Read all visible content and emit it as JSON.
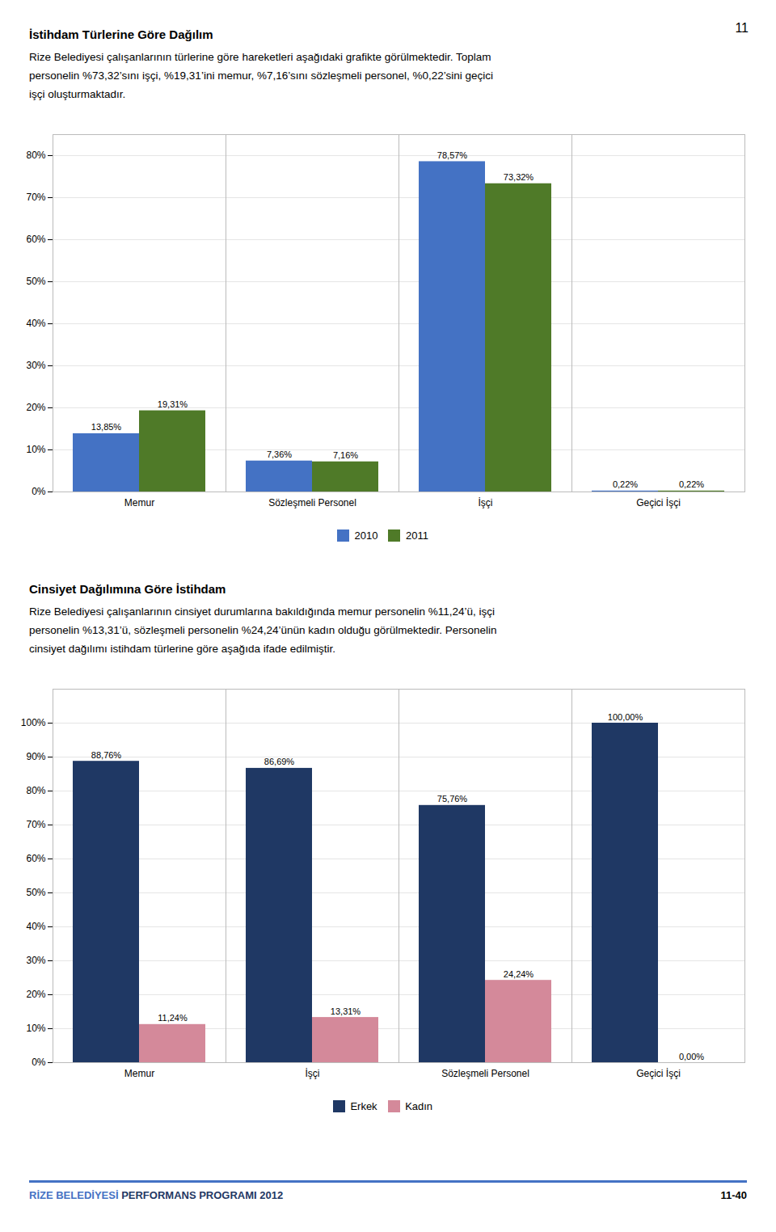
{
  "page_number": "11",
  "chart_data": [
    {
      "type": "bar",
      "title": "İstihdam Türlerine Göre Dağılım",
      "subtitle": [
        "Rize Belediyesi çalışanlarının türlerine göre hareketleri aşağıdaki grafikte görülmektedir. Toplam",
        "personelin %73,32’sını işçi, %19,31’ini memur, %7,16’sını sözleşmeli personel, %0,22’sini geçici",
        "işçi oluşturmaktadır."
      ],
      "categories": [
        "Memur",
        "Sözleşmeli Personel",
        "İşçi",
        "Geçici İşçi"
      ],
      "series": [
        {
          "name": "2010",
          "color": "#4472C4",
          "values": [
            13.85,
            7.36,
            78.57,
            0.22
          ],
          "value_labels": [
            "13,85%",
            "7,36%",
            "78,57%",
            "0,22%"
          ]
        },
        {
          "name": "2011",
          "color": "#4F7A28",
          "values": [
            19.31,
            7.16,
            73.32,
            0.22
          ],
          "value_labels": [
            "19,31%",
            "7,16%",
            "73,32%",
            "0,22%"
          ]
        }
      ],
      "ylim": [
        0,
        85
      ],
      "yticks": [
        {
          "value": 0,
          "label": "0%"
        },
        {
          "value": 10,
          "label": "10%"
        },
        {
          "value": 20,
          "label": "20%"
        },
        {
          "value": 30,
          "label": "30%"
        },
        {
          "value": 40,
          "label": "40%"
        },
        {
          "value": 50,
          "label": "50%"
        },
        {
          "value": 60,
          "label": "60%"
        },
        {
          "value": 70,
          "label": "70%"
        },
        {
          "value": 80,
          "label": "80%"
        }
      ],
      "grid": true,
      "legend": "bottom",
      "data_labels": true
    },
    {
      "type": "bar",
      "title": "Cinsiyet Dağılımına Göre İstihdam",
      "subtitle": [
        "Rize Belediyesi çalışanlarının cinsiyet durumlarına bakıldığında memur personelin %11,24’ü, işçi",
        "personelin %13,31’ü, sözleşmeli personelin %24,24’ünün kadın olduğu görülmektedir. Personelin",
        "cinsiyet dağılımı istihdam türlerine göre aşağıda ifade edilmiştir."
      ],
      "categories": [
        "Memur",
        "İşçi",
        "Sözleşmeli Personel",
        "Geçici İşçi"
      ],
      "series": [
        {
          "name": "Erkek",
          "color": "#1F3864",
          "values": [
            88.76,
            86.69,
            75.76,
            100.0
          ],
          "value_labels": [
            "88,76%",
            "86,69%",
            "75,76%",
            "100,00%"
          ]
        },
        {
          "name": "Kadın",
          "color": "#D4899A",
          "values": [
            11.24,
            13.31,
            24.24,
            0.0
          ],
          "value_labels": [
            "11,24%",
            "13,31%",
            "24,24%",
            "0,00%"
          ]
        }
      ],
      "ylim": [
        0,
        110
      ],
      "yticks": [
        {
          "value": 0,
          "label": "0%"
        },
        {
          "value": 10,
          "label": "10%"
        },
        {
          "value": 20,
          "label": "20%"
        },
        {
          "value": 30,
          "label": "30%"
        },
        {
          "value": 40,
          "label": "40%"
        },
        {
          "value": 50,
          "label": "50%"
        },
        {
          "value": 60,
          "label": "60%"
        },
        {
          "value": 70,
          "label": "70%"
        },
        {
          "value": 80,
          "label": "80%"
        },
        {
          "value": 90,
          "label": "90%"
        },
        {
          "value": 100,
          "label": "100%"
        }
      ],
      "grid": true,
      "legend": "bottom",
      "data_labels": true
    }
  ],
  "footer": {
    "left": [
      {
        "text": "RİZE BELEDİYESİ",
        "color": "#4472C4"
      },
      {
        "text": " PERFORMANS PROGRAMI 2012",
        "color": "#1F3864"
      }
    ],
    "right": "11-40"
  }
}
